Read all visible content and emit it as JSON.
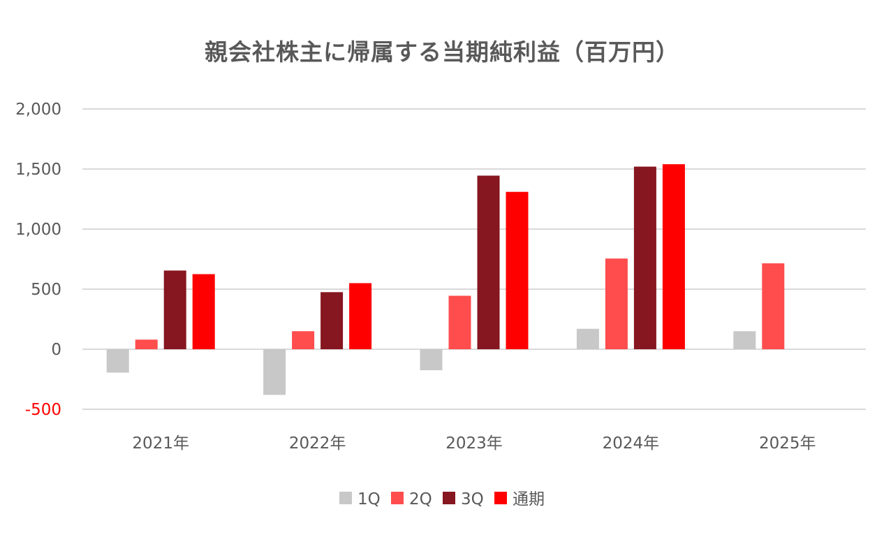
{
  "chart_data": {
    "type": "bar",
    "title": "親会社株主に帰属する当期純利益（百万円）",
    "xlabel": "",
    "ylabel": "",
    "categories": [
      "2021年",
      "2022年",
      "2023年",
      "2024年",
      "2025年"
    ],
    "series": [
      {
        "name": "1Q",
        "color": "#c8c8c8",
        "values": [
          -195,
          -380,
          -175,
          170,
          150
        ]
      },
      {
        "name": "2Q",
        "color": "#ff4d4d",
        "values": [
          80,
          150,
          445,
          755,
          715
        ]
      },
      {
        "name": "3Q",
        "color": "#86161f",
        "values": [
          655,
          475,
          1445,
          1520,
          null
        ]
      },
      {
        "name": "通期",
        "color": "#ff0000",
        "values": [
          625,
          550,
          1310,
          1540,
          null
        ]
      }
    ],
    "ylim": [
      -500,
      2000
    ],
    "yticks": [
      {
        "value": -500,
        "label": "-500",
        "color": "#ff0000"
      },
      {
        "value": 0,
        "label": "0",
        "color": "#595959"
      },
      {
        "value": 500,
        "label": "500",
        "color": "#595959"
      },
      {
        "value": 1000,
        "label": "1,000",
        "color": "#595959"
      },
      {
        "value": 1500,
        "label": "1,500",
        "color": "#595959"
      },
      {
        "value": 2000,
        "label": "2,000",
        "color": "#595959"
      }
    ],
    "grid": true,
    "legend_position": "bottom",
    "gridline_color": "#d9d9d9",
    "text_color": "#595959"
  }
}
